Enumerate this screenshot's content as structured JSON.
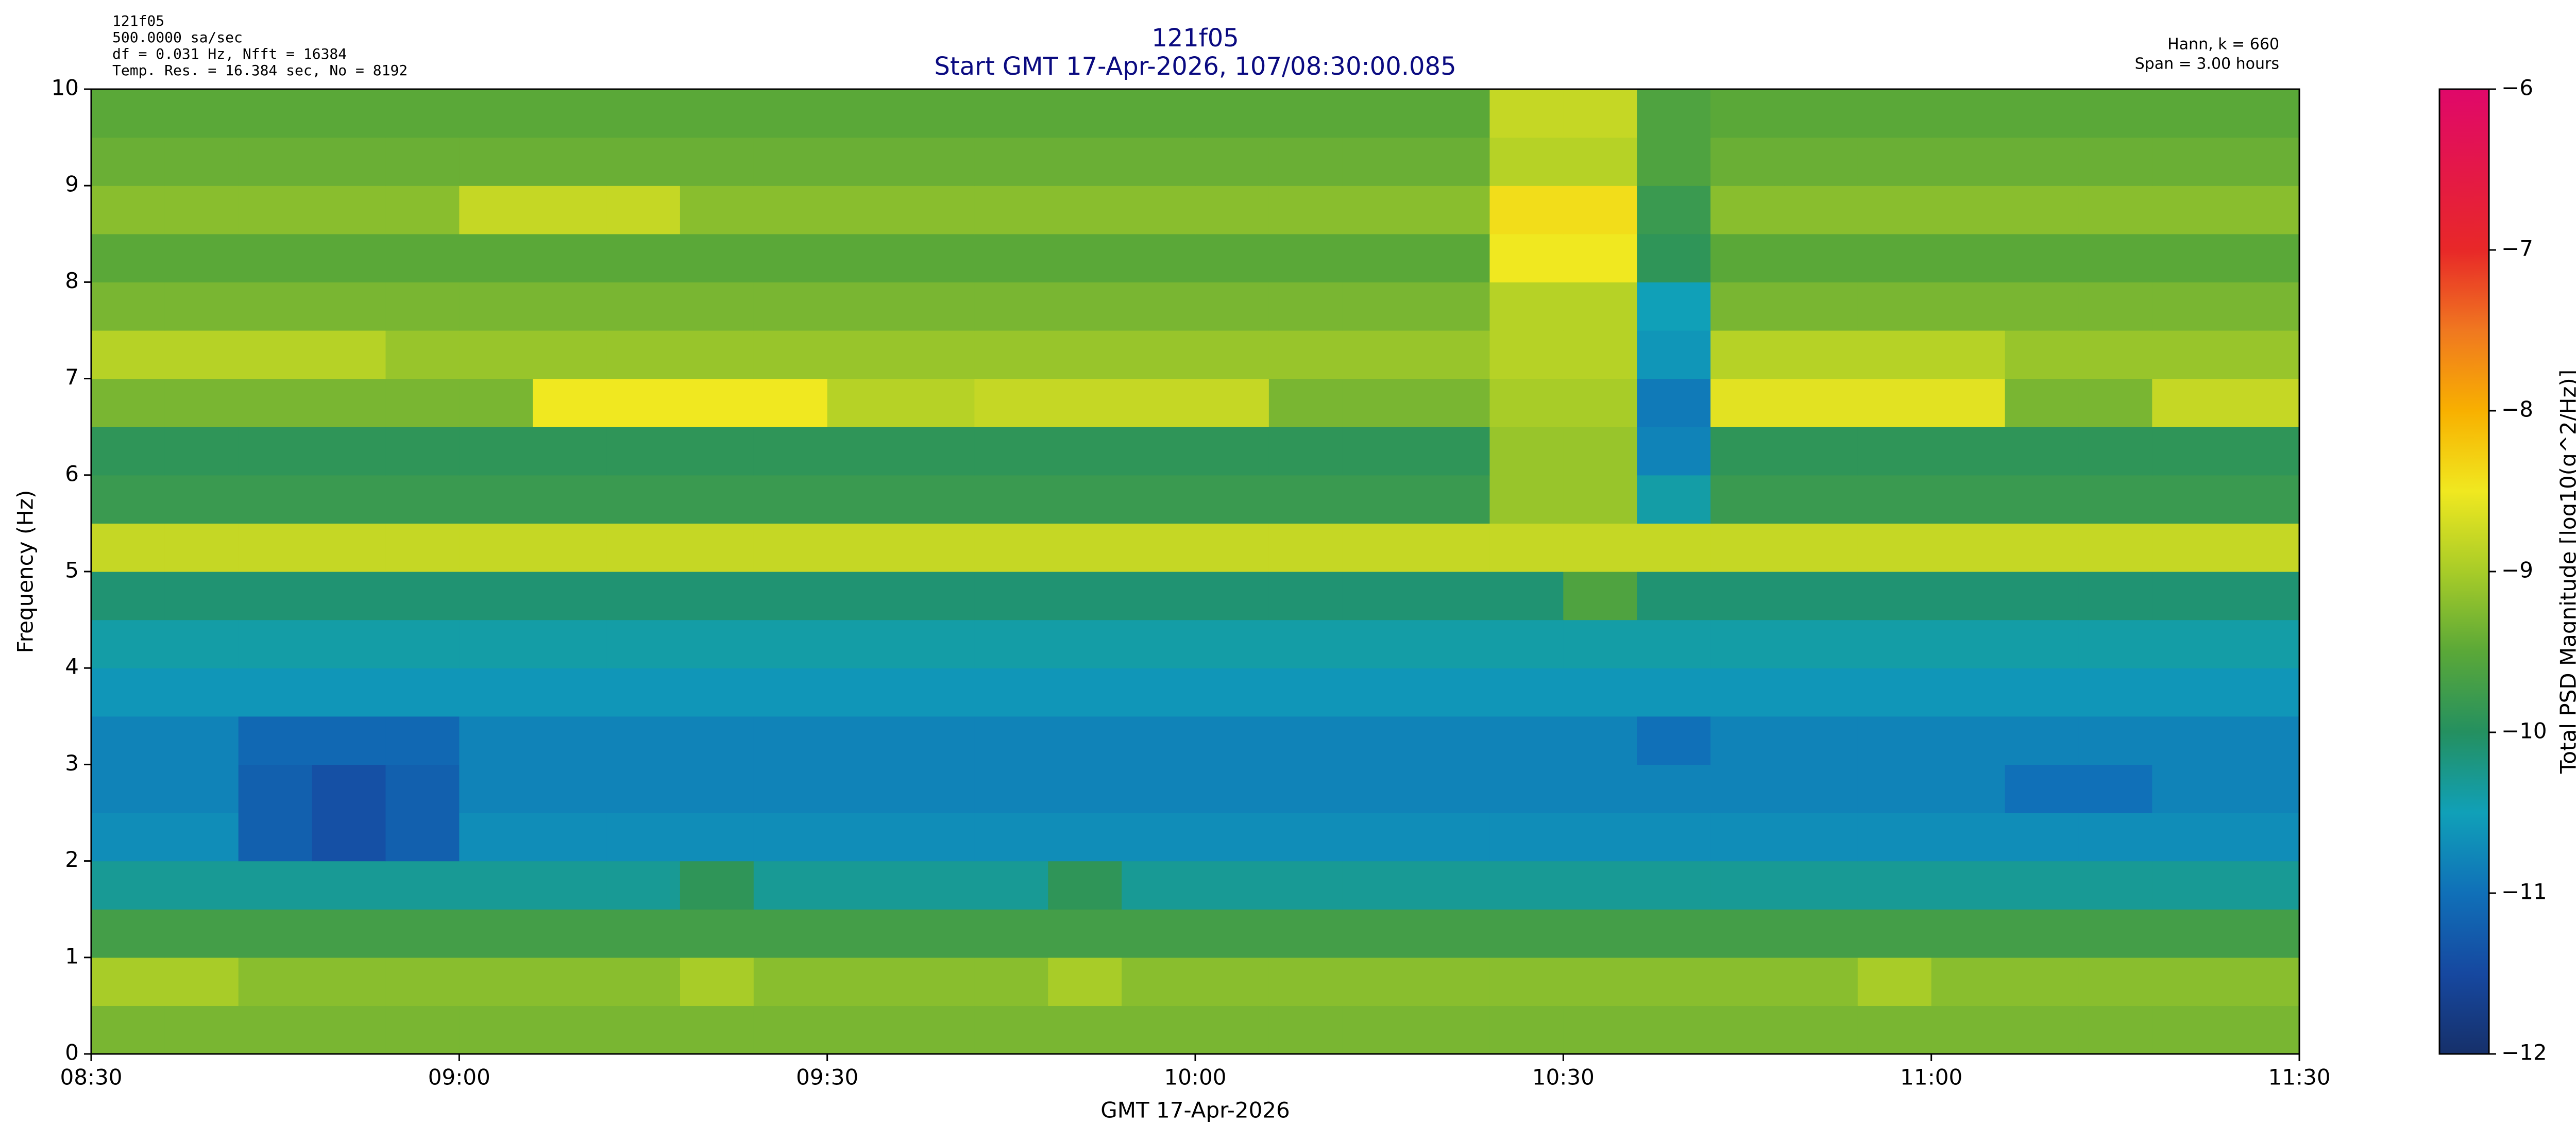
{
  "chart_data": {
    "type": "heatmap",
    "title": "121f05",
    "subtitle": "Start GMT 17-Apr-2026, 107/08:30:00.085",
    "info_left": [
      "121f05",
      "500.0000 sa/sec",
      "df = 0.031 Hz,  Nfft = 16384",
      "Temp. Res. = 16.384 sec, No = 8192"
    ],
    "info_right": [
      "Hann, k = 660",
      "Span = 3.00 hours"
    ],
    "xlabel": "GMT 17-Apr-2026",
    "ylabel": "Frequency (Hz)",
    "zlabel": "Total PSD Magnitude [log10(g^2/Hz)]",
    "xlim": [
      "08:30",
      "11:30"
    ],
    "xticks": [
      "08:30",
      "09:00",
      "09:30",
      "10:00",
      "10:30",
      "11:00",
      "11:30"
    ],
    "ylim": [
      0,
      10
    ],
    "yticks": [
      0,
      1,
      2,
      3,
      4,
      5,
      6,
      7,
      8,
      9,
      10
    ],
    "zlim": [
      -12,
      -6
    ],
    "zticks": [
      {
        "value": -12,
        "label": "−12"
      },
      {
        "value": -11,
        "label": "−11"
      },
      {
        "value": -10,
        "label": "−10"
      },
      {
        "value": -9,
        "label": "−9"
      },
      {
        "value": -8,
        "label": "−8"
      },
      {
        "value": -7,
        "label": "−7"
      },
      {
        "value": -6,
        "label": "−6"
      }
    ],
    "colormap": [
      "#16306a",
      "#1648a0",
      "#1070b8",
      "#10a0b8",
      "#249060",
      "#5aa838",
      "#a8cc28",
      "#f0e820",
      "#f8b000",
      "#f07820",
      "#e82828",
      "#e41848",
      "#e0086a"
    ],
    "x": [
      "08:33",
      "08:39",
      "08:45",
      "08:51",
      "08:57",
      "09:03",
      "09:09",
      "09:15",
      "09:21",
      "09:27",
      "09:33",
      "09:39",
      "09:45",
      "09:51",
      "09:57",
      "10:03",
      "10:09",
      "10:15",
      "10:21",
      "10:27",
      "10:33",
      "10:39",
      "10:45",
      "10:51",
      "10:57",
      "11:03",
      "11:09",
      "11:15",
      "11:21",
      "11:27"
    ],
    "y": [
      0.25,
      0.75,
      1.25,
      1.75,
      2.25,
      2.75,
      3.25,
      3.75,
      4.25,
      4.75,
      5.25,
      5.75,
      6.25,
      6.75,
      7.25,
      7.75,
      8.25,
      8.75,
      9.25,
      9.75
    ],
    "z": [
      [
        -9.3,
        -9.3,
        -9.3,
        -9.3,
        -9.3,
        -9.3,
        -9.3,
        -9.3,
        -9.3,
        -9.3,
        -9.3,
        -9.3,
        -9.3,
        -9.3,
        -9.3,
        -9.3,
        -9.3,
        -9.3,
        -9.3,
        -9.3,
        -9.3,
        -9.3,
        -9.3,
        -9.3,
        -9.3,
        -9.3,
        -9.3,
        -9.3,
        -9.3,
        -9.3
      ],
      [
        -9.0,
        -9.0,
        -9.2,
        -9.2,
        -9.2,
        -9.2,
        -9.2,
        -9.2,
        -9.0,
        -9.2,
        -9.2,
        -9.2,
        -9.2,
        -9.0,
        -9.2,
        -9.2,
        -9.2,
        -9.2,
        -9.2,
        -9.2,
        -9.2,
        -9.2,
        -9.2,
        -9.2,
        -9.0,
        -9.2,
        -9.2,
        -9.2,
        -9.2,
        -9.2
      ],
      [
        -9.7,
        -9.7,
        -9.7,
        -9.7,
        -9.7,
        -9.7,
        -9.7,
        -9.7,
        -9.7,
        -9.7,
        -9.7,
        -9.7,
        -9.7,
        -9.7,
        -9.7,
        -9.7,
        -9.7,
        -9.7,
        -9.7,
        -9.7,
        -9.7,
        -9.7,
        -9.7,
        -9.7,
        -9.7,
        -9.7,
        -9.7,
        -9.7,
        -9.7,
        -9.7
      ],
      [
        -10.3,
        -10.3,
        -10.3,
        -10.3,
        -10.3,
        -10.3,
        -10.3,
        -10.3,
        -9.9,
        -10.3,
        -10.3,
        -10.3,
        -10.3,
        -9.9,
        -10.3,
        -10.3,
        -10.3,
        -10.3,
        -10.3,
        -10.3,
        -10.3,
        -10.3,
        -10.3,
        -10.3,
        -10.3,
        -10.3,
        -10.3,
        -10.3,
        -10.3,
        -10.3
      ],
      [
        -10.7,
        -10.7,
        -11.2,
        -11.4,
        -11.2,
        -10.7,
        -10.7,
        -10.7,
        -10.7,
        -10.7,
        -10.7,
        -10.7,
        -10.7,
        -10.7,
        -10.7,
        -10.7,
        -10.7,
        -10.7,
        -10.7,
        -10.7,
        -10.7,
        -10.7,
        -10.7,
        -10.7,
        -10.7,
        -10.7,
        -10.7,
        -10.7,
        -10.7,
        -10.7
      ],
      [
        -10.8,
        -10.8,
        -11.2,
        -11.4,
        -11.2,
        -10.8,
        -10.8,
        -10.8,
        -10.8,
        -10.8,
        -10.8,
        -10.8,
        -10.8,
        -10.8,
        -10.8,
        -10.8,
        -10.8,
        -10.8,
        -10.8,
        -10.8,
        -10.8,
        -10.8,
        -10.8,
        -10.8,
        -10.8,
        -10.8,
        -11.0,
        -11.0,
        -10.8,
        -10.8
      ],
      [
        -10.8,
        -10.8,
        -11.1,
        -11.1,
        -11.1,
        -10.8,
        -10.8,
        -10.8,
        -10.8,
        -10.8,
        -10.8,
        -10.8,
        -10.8,
        -10.8,
        -10.8,
        -10.8,
        -10.8,
        -10.8,
        -10.8,
        -10.8,
        -10.8,
        -11.0,
        -10.8,
        -10.8,
        -10.8,
        -10.8,
        -10.8,
        -10.8,
        -10.8,
        -10.8
      ],
      [
        -10.6,
        -10.6,
        -10.6,
        -10.6,
        -10.6,
        -10.6,
        -10.6,
        -10.6,
        -10.6,
        -10.6,
        -10.6,
        -10.6,
        -10.6,
        -10.6,
        -10.6,
        -10.6,
        -10.6,
        -10.6,
        -10.6,
        -10.6,
        -10.6,
        -10.6,
        -10.6,
        -10.6,
        -10.6,
        -10.6,
        -10.6,
        -10.6,
        -10.6,
        -10.6
      ],
      [
        -10.4,
        -10.4,
        -10.4,
        -10.4,
        -10.4,
        -10.4,
        -10.4,
        -10.4,
        -10.4,
        -10.4,
        -10.4,
        -10.4,
        -10.4,
        -10.4,
        -10.4,
        -10.4,
        -10.4,
        -10.4,
        -10.4,
        -10.4,
        -10.4,
        -10.4,
        -10.4,
        -10.4,
        -10.4,
        -10.4,
        -10.4,
        -10.4,
        -10.4,
        -10.4
      ],
      [
        -10.1,
        -10.1,
        -10.1,
        -10.1,
        -10.1,
        -10.1,
        -10.1,
        -10.1,
        -10.1,
        -10.1,
        -10.1,
        -10.1,
        -10.1,
        -10.1,
        -10.1,
        -10.1,
        -10.1,
        -10.1,
        -10.1,
        -10.1,
        -9.6,
        -10.1,
        -10.1,
        -10.1,
        -10.1,
        -10.1,
        -10.1,
        -10.1,
        -10.1,
        -10.1
      ],
      [
        -8.8,
        -8.8,
        -8.8,
        -8.8,
        -8.8,
        -8.8,
        -8.8,
        -8.8,
        -8.8,
        -8.8,
        -8.8,
        -8.8,
        -8.8,
        -8.8,
        -8.8,
        -8.8,
        -8.8,
        -8.8,
        -8.8,
        -8.8,
        -8.8,
        -8.8,
        -8.8,
        -8.8,
        -8.8,
        -8.8,
        -8.8,
        -8.8,
        -8.8,
        -8.8
      ],
      [
        -9.8,
        -9.8,
        -9.8,
        -9.8,
        -9.8,
        -9.8,
        -9.8,
        -9.8,
        -9.8,
        -9.8,
        -9.8,
        -9.8,
        -9.8,
        -9.8,
        -9.8,
        -9.8,
        -9.8,
        -9.8,
        -9.8,
        -9.1,
        -9.1,
        -10.4,
        -9.8,
        -9.8,
        -9.8,
        -9.8,
        -9.8,
        -9.8,
        -9.8,
        -9.8
      ],
      [
        -9.9,
        -9.9,
        -9.9,
        -9.9,
        -9.9,
        -9.9,
        -9.9,
        -9.9,
        -9.9,
        -9.9,
        -9.9,
        -9.9,
        -9.9,
        -9.9,
        -9.9,
        -9.9,
        -9.9,
        -9.9,
        -9.9,
        -9.1,
        -9.1,
        -10.8,
        -9.9,
        -9.9,
        -9.9,
        -9.9,
        -9.9,
        -9.9,
        -9.9,
        -9.9
      ],
      [
        -9.3,
        -9.3,
        -9.3,
        -9.3,
        -9.3,
        -9.3,
        -8.5,
        -8.5,
        -8.5,
        -8.5,
        -8.9,
        -8.9,
        -8.8,
        -8.8,
        -8.8,
        -8.8,
        -9.3,
        -9.3,
        -9.3,
        -9.0,
        -9.0,
        -10.9,
        -8.6,
        -8.6,
        -8.6,
        -8.6,
        -9.3,
        -9.3,
        -8.8,
        -8.8
      ],
      [
        -8.9,
        -8.9,
        -8.9,
        -8.9,
        -9.1,
        -9.1,
        -9.1,
        -9.1,
        -9.1,
        -9.1,
        -9.1,
        -9.1,
        -9.1,
        -9.1,
        -9.1,
        -9.1,
        -9.1,
        -9.1,
        -9.1,
        -8.9,
        -8.9,
        -10.6,
        -8.9,
        -8.9,
        -8.9,
        -8.9,
        -9.1,
        -9.1,
        -9.1,
        -9.1
      ],
      [
        -9.3,
        -9.3,
        -9.3,
        -9.3,
        -9.3,
        -9.3,
        -9.3,
        -9.3,
        -9.3,
        -9.3,
        -9.3,
        -9.3,
        -9.3,
        -9.3,
        -9.3,
        -9.3,
        -9.3,
        -9.3,
        -9.3,
        -8.9,
        -8.9,
        -10.5,
        -9.3,
        -9.3,
        -9.3,
        -9.3,
        -9.3,
        -9.3,
        -9.3,
        -9.3
      ],
      [
        -9.5,
        -9.5,
        -9.5,
        -9.5,
        -9.5,
        -9.5,
        -9.5,
        -9.5,
        -9.5,
        -9.5,
        -9.5,
        -9.5,
        -9.5,
        -9.5,
        -9.5,
        -9.5,
        -9.5,
        -9.5,
        -9.5,
        -8.5,
        -8.5,
        -9.9,
        -9.5,
        -9.5,
        -9.5,
        -9.5,
        -9.5,
        -9.5,
        -9.5,
        -9.5
      ],
      [
        -9.2,
        -9.2,
        -9.2,
        -9.2,
        -9.2,
        -8.8,
        -8.8,
        -8.8,
        -9.2,
        -9.2,
        -9.2,
        -9.2,
        -9.2,
        -9.2,
        -9.2,
        -9.2,
        -9.2,
        -9.2,
        -9.2,
        -8.4,
        -8.4,
        -9.8,
        -9.2,
        -9.2,
        -9.2,
        -9.2,
        -9.2,
        -9.2,
        -9.2,
        -9.2
      ],
      [
        -9.4,
        -9.4,
        -9.4,
        -9.4,
        -9.4,
        -9.4,
        -9.4,
        -9.4,
        -9.4,
        -9.4,
        -9.4,
        -9.4,
        -9.4,
        -9.4,
        -9.4,
        -9.4,
        -9.4,
        -9.4,
        -9.4,
        -8.9,
        -8.9,
        -9.6,
        -9.4,
        -9.4,
        -9.4,
        -9.4,
        -9.4,
        -9.4,
        -9.4,
        -9.4
      ],
      [
        -9.5,
        -9.5,
        -9.5,
        -9.5,
        -9.5,
        -9.5,
        -9.5,
        -9.5,
        -9.5,
        -9.5,
        -9.5,
        -9.5,
        -9.5,
        -9.5,
        -9.5,
        -9.5,
        -9.5,
        -9.5,
        -9.5,
        -8.8,
        -8.8,
        -9.6,
        -9.5,
        -9.5,
        -9.5,
        -9.5,
        -9.5,
        -9.5,
        -9.5,
        -9.5
      ]
    ]
  }
}
